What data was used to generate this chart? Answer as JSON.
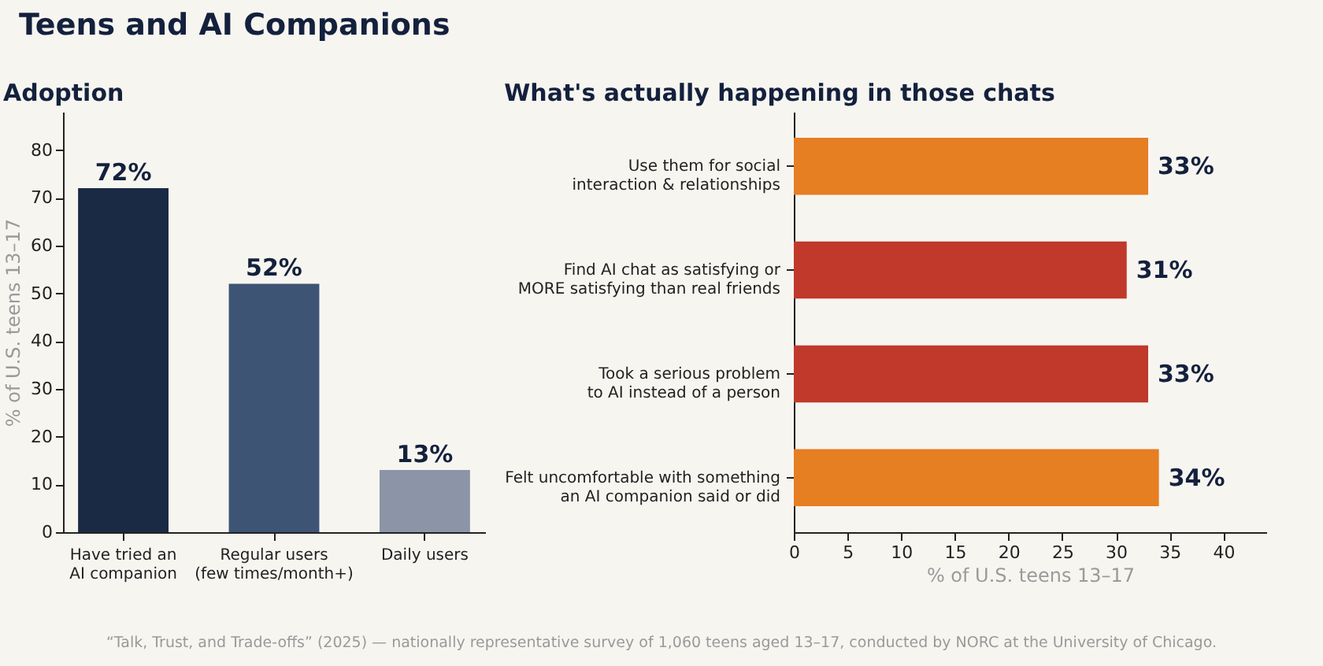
{
  "chart_data": [
    {
      "type": "other",
      "title": "Teens and AI Companions",
      "annotations": [
        "“Talk, Trust, and Trade-offs” (2025) — nationally representative survey of 1,060 teens aged 13–17, conducted by NORC at the University of Chicago."
      ]
    },
    {
      "type": "bar",
      "title": "Adoption",
      "categories": [
        "Have tried an AI companion",
        "Regular users (few times/month+)",
        "Daily users"
      ],
      "values": [
        72,
        52,
        13
      ],
      "colors": [
        "#1b2a44",
        "#3e5475",
        "#8b95a7"
      ],
      "value_labels": [
        "72%",
        "52%",
        "13%"
      ],
      "ylabel": "% of U.S. teens 13–17",
      "ylim": [
        0,
        88
      ],
      "yticks": [
        0,
        10,
        20,
        30,
        40,
        50,
        60,
        70,
        80
      ],
      "grid": false
    },
    {
      "type": "bar",
      "orientation": "horizontal",
      "title": "What's actually happening in those chats",
      "categories": [
        "Use them for social interaction & relationships",
        "Find AI chat as satisfying or MORE satisfying than real friends",
        "Took a serious problem to AI instead of a person",
        "Felt uncomfortable with something an AI companion said or did"
      ],
      "values": [
        33,
        31,
        33,
        34
      ],
      "colors": [
        "#e67e22",
        "#c0392b",
        "#c0392b",
        "#e67e22"
      ],
      "value_labels": [
        "33%",
        "31%",
        "33%",
        "34%"
      ],
      "xlabel": "% of U.S. teens 13–17",
      "xlim": [
        0,
        44
      ],
      "xticks": [
        0,
        5,
        10,
        15,
        20,
        25,
        30,
        35,
        40
      ],
      "grid": false
    }
  ]
}
